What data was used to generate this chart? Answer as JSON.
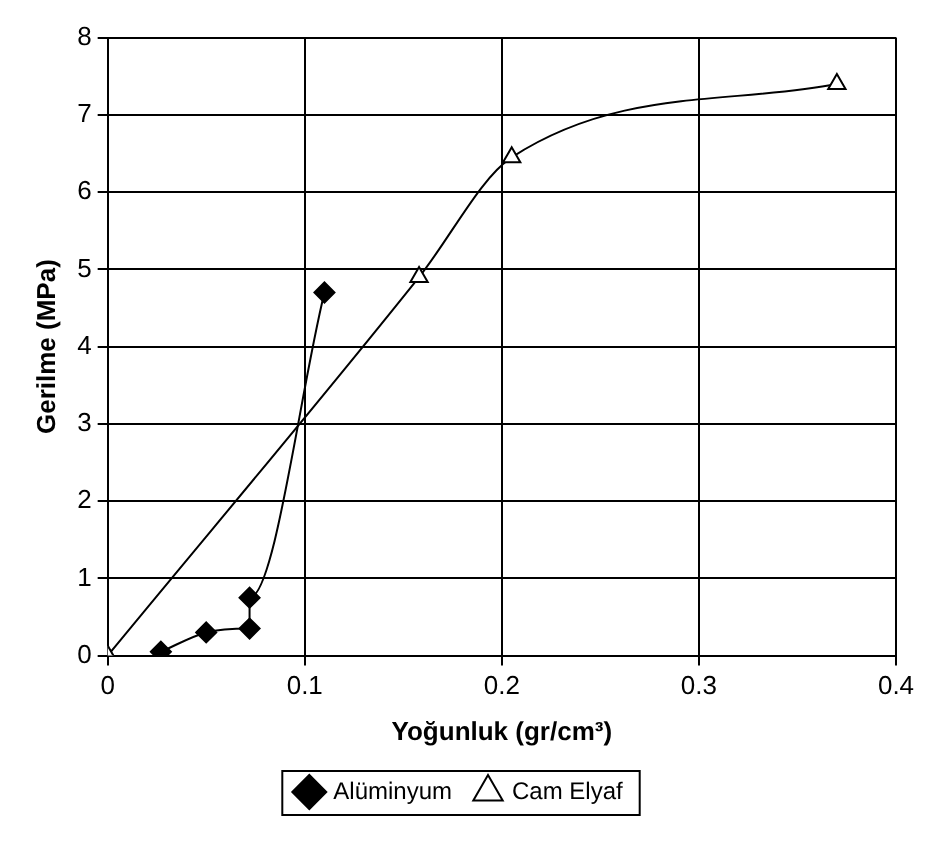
{
  "chart_data": {
    "type": "line",
    "xlabel": "Yoğunluk (gr/cm³)",
    "ylabel": "Gerilme (MPa)",
    "series": [
      {
        "name": "Alüminyum",
        "color": "#000000",
        "marker": "diamond",
        "x": [
          0.027,
          0.05,
          0.072,
          0.072,
          0.11
        ],
        "values": [
          0.05,
          0.3,
          0.35,
          0.75,
          4.7
        ]
      },
      {
        "name": "Cam Elyaf",
        "color": "#000000",
        "marker": "triangle",
        "x": [
          0,
          0.158,
          0.205,
          0.37
        ],
        "values": [
          0,
          4.9,
          6.45,
          7.4
        ]
      }
    ],
    "xlim": [
      0,
      0.4
    ],
    "xticks": [
      0,
      0.1,
      0.2,
      0.3,
      0.4
    ],
    "ylim": [
      0,
      8
    ],
    "yticks": [
      0,
      1,
      2,
      3,
      4,
      5,
      6,
      7,
      8
    ],
    "grid": true,
    "legend": "bottom"
  }
}
